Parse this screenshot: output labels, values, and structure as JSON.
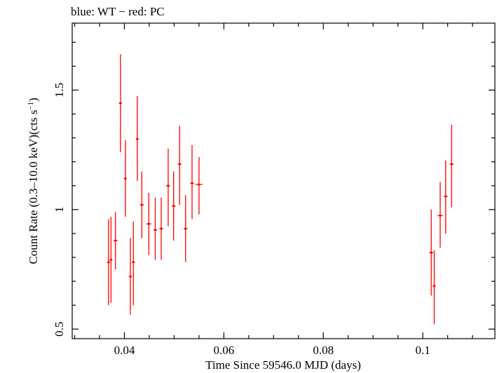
{
  "chart_data": {
    "type": "scatter",
    "title": "blue: WT − red: PC",
    "xlabel": "Time Since 59546.0 MJD (days)",
    "ylabel": "Count Rate (0.3–10.0 keV)(cts s",
    "ylabel_superscript": "−1",
    "ylabel_suffix": ")",
    "xlim": [
      0.0295,
      0.1145
    ],
    "ylim": [
      0.46,
      1.78
    ],
    "x_ticks": [
      0.04,
      0.06,
      0.08,
      0.1
    ],
    "x_tick_labels": [
      "0.04",
      "0.06",
      "0.08",
      "0.1"
    ],
    "y_ticks": [
      0.5,
      1,
      1.5
    ],
    "y_tick_labels": [
      "0.5",
      "1",
      "1.5"
    ],
    "grid": false,
    "series": [
      {
        "color": "#ff0000",
        "points": [
          {
            "x": 0.0368,
            "xerr": 0.0003,
            "y": 0.78,
            "ylo": 0.6,
            "yhi": 0.96
          },
          {
            "x": 0.0373,
            "xerr": 0.0003,
            "y": 0.79,
            "ylo": 0.61,
            "yhi": 0.97
          },
          {
            "x": 0.0382,
            "xerr": 0.0004,
            "y": 0.87,
            "ylo": 0.75,
            "yhi": 0.99
          },
          {
            "x": 0.0392,
            "xerr": 0.0003,
            "y": 1.445,
            "ylo": 1.24,
            "yhi": 1.65
          },
          {
            "x": 0.0402,
            "xerr": 0.0003,
            "y": 1.13,
            "ylo": 0.97,
            "yhi": 1.29
          },
          {
            "x": 0.0412,
            "xerr": 0.0003,
            "y": 0.72,
            "ylo": 0.56,
            "yhi": 0.88
          },
          {
            "x": 0.0418,
            "xerr": 0.0003,
            "y": 0.78,
            "ylo": 0.6,
            "yhi": 0.95
          },
          {
            "x": 0.0426,
            "xerr": 0.0003,
            "y": 1.295,
            "ylo": 1.12,
            "yhi": 1.475
          },
          {
            "x": 0.0435,
            "xerr": 0.0004,
            "y": 1.02,
            "ylo": 0.88,
            "yhi": 1.16
          },
          {
            "x": 0.0449,
            "xerr": 0.0005,
            "y": 0.94,
            "ylo": 0.81,
            "yhi": 1.07
          },
          {
            "x": 0.0462,
            "xerr": 0.0004,
            "y": 0.915,
            "ylo": 0.79,
            "yhi": 1.05
          },
          {
            "x": 0.0474,
            "xerr": 0.0004,
            "y": 0.92,
            "ylo": 0.79,
            "yhi": 1.05
          },
          {
            "x": 0.0488,
            "xerr": 0.0004,
            "y": 1.1,
            "ylo": 0.93,
            "yhi": 1.255
          },
          {
            "x": 0.0499,
            "xerr": 0.0004,
            "y": 1.015,
            "ylo": 0.87,
            "yhi": 1.16
          },
          {
            "x": 0.0511,
            "xerr": 0.0004,
            "y": 1.19,
            "ylo": 1.02,
            "yhi": 1.35
          },
          {
            "x": 0.0523,
            "xerr": 0.0004,
            "y": 0.92,
            "ylo": 0.78,
            "yhi": 1.06
          },
          {
            "x": 0.0536,
            "xerr": 0.0004,
            "y": 1.11,
            "ylo": 0.96,
            "yhi": 1.27
          },
          {
            "x": 0.055,
            "xerr": 0.0007,
            "y": 1.105,
            "ylo": 0.98,
            "yhi": 1.22
          },
          {
            "x": 0.1017,
            "xerr": 0.0004,
            "y": 0.82,
            "ylo": 0.64,
            "yhi": 1.0
          },
          {
            "x": 0.1023,
            "xerr": 0.0003,
            "y": 0.68,
            "ylo": 0.52,
            "yhi": 0.83
          },
          {
            "x": 0.1035,
            "xerr": 0.0005,
            "y": 0.975,
            "ylo": 0.84,
            "yhi": 1.115
          },
          {
            "x": 0.1046,
            "xerr": 0.0004,
            "y": 1.055,
            "ylo": 0.9,
            "yhi": 1.205
          },
          {
            "x": 0.1058,
            "xerr": 0.0004,
            "y": 1.19,
            "ylo": 1.01,
            "yhi": 1.355
          }
        ]
      }
    ]
  }
}
